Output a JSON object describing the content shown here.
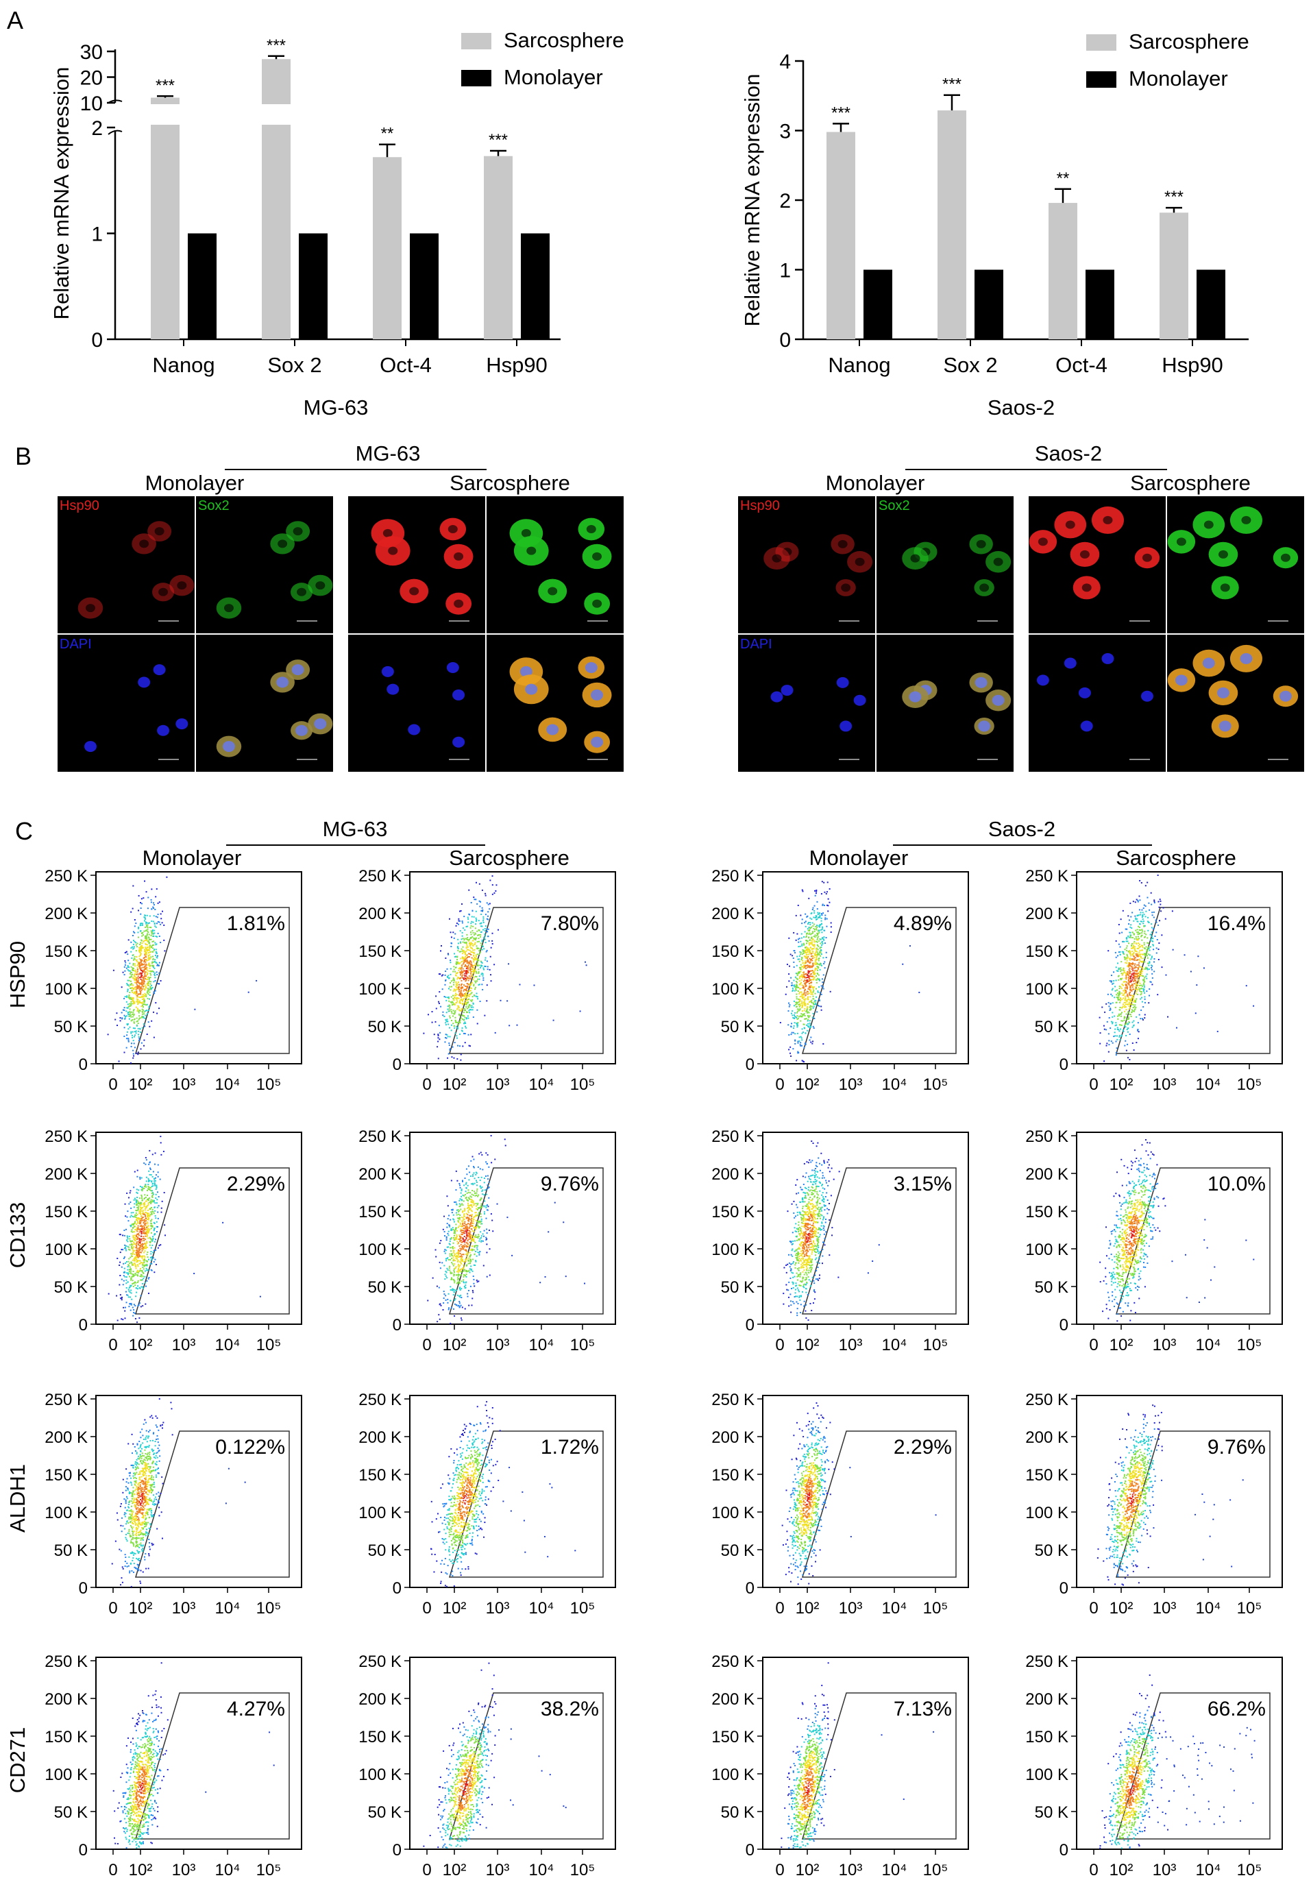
{
  "panels": {
    "A": {
      "letter": "A"
    },
    "B": {
      "letter": "B"
    },
    "C": {
      "letter": "C"
    }
  },
  "chart_data": [
    {
      "type": "bar",
      "id": "bar-mg63",
      "xlabel": "MG-63",
      "ylabel": "Relative mRNA expression",
      "categories": [
        "Nanog",
        "Sox 2",
        "Oct-4",
        "Hsp90"
      ],
      "broken_axis": true,
      "ylim_lower": [
        0,
        2
      ],
      "yticks_lower": [
        "0",
        "1",
        "2"
      ],
      "ylim_upper": [
        10,
        30
      ],
      "yticks_upper": [
        "10",
        "20",
        "30"
      ],
      "series": [
        {
          "name": "Sarcosphere",
          "color": "#c8c8c8",
          "values": [
            12,
            27,
            1.72,
            1.73
          ],
          "errors": [
            0.6,
            1.2,
            0.12,
            0.05
          ]
        },
        {
          "name": "Monolayer",
          "color": "#000000",
          "values": [
            1,
            1,
            1,
            1
          ],
          "errors": [
            0,
            0,
            0,
            0
          ]
        }
      ],
      "significance": [
        "***",
        "***",
        "**",
        "***"
      ],
      "legend_position": "top-right"
    },
    {
      "type": "bar",
      "id": "bar-saos2",
      "xlabel": "Saos-2",
      "ylabel": "Relative mRNA expression",
      "categories": [
        "Nanog",
        "Sox 2",
        "Oct-4",
        "Hsp90"
      ],
      "ylim": [
        0,
        4
      ],
      "yticks": [
        "0",
        "1",
        "2",
        "3",
        "4"
      ],
      "series": [
        {
          "name": "Sarcosphere",
          "color": "#c8c8c8",
          "values": [
            2.98,
            3.29,
            1.96,
            1.82
          ],
          "errors": [
            0.12,
            0.22,
            0.2,
            0.07
          ]
        },
        {
          "name": "Monolayer",
          "color": "#000000",
          "values": [
            1,
            1,
            1,
            1
          ],
          "errors": [
            0,
            0,
            0,
            0
          ]
        }
      ],
      "significance": [
        "***",
        "***",
        "**",
        "***"
      ],
      "legend_position": "top-right"
    },
    {
      "type": "scatter",
      "id": "flow-cytometry",
      "rows": [
        "HSP90",
        "CD133",
        "ALDH1",
        "CD271"
      ],
      "groups": [
        {
          "cell_line": "MG-63",
          "conditions": [
            "Monolayer",
            "Sarcosphere"
          ]
        },
        {
          "cell_line": "Saos-2",
          "conditions": [
            "Monolayer",
            "Sarcosphere"
          ]
        }
      ],
      "y_ticks": [
        "0",
        "50 K",
        "100 K",
        "150 K",
        "200 K",
        "250 K"
      ],
      "x_ticks": [
        "0",
        "10²",
        "10³",
        "10⁴",
        "10⁵"
      ],
      "gate_percentages": [
        [
          "1.81%",
          "7.80%",
          "4.89%",
          "16.4%"
        ],
        [
          "2.29%",
          "9.76%",
          "3.15%",
          "10.0%"
        ],
        [
          "0.122%",
          "1.72%",
          "2.29%",
          "9.76%"
        ],
        [
          "4.27%",
          "38.2%",
          "7.13%",
          "66.2%"
        ]
      ]
    }
  ],
  "microscopy": {
    "groups": [
      {
        "cell_line": "MG-63",
        "conditions": [
          "Monolayer",
          "Sarcosphere"
        ]
      },
      {
        "cell_line": "Saos-2",
        "conditions": [
          "Monolayer",
          "Sarcosphere"
        ]
      }
    ],
    "channel_labels": {
      "hsp90": "Hsp90",
      "sox2": "Sox2",
      "dapi": "DAPI"
    },
    "colors": {
      "hsp90": "#e02020",
      "sox2": "#20c020",
      "dapi": "#2020e0",
      "merge": "#e8a020"
    }
  }
}
